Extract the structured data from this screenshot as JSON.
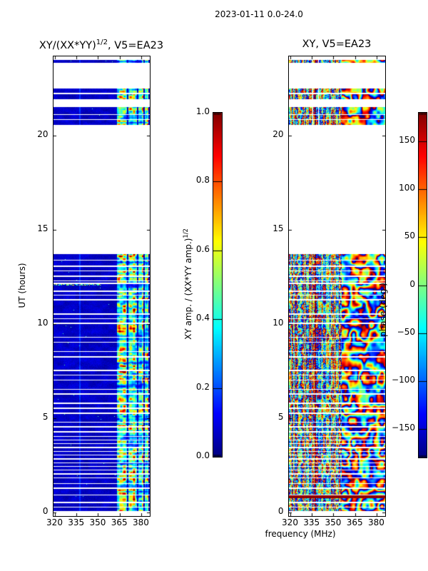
{
  "figure": {
    "title": "2023-01-11 0.0-24.0",
    "background": "#ffffff"
  },
  "chart_data": {
    "type": "heatmap",
    "colormap": "jet",
    "x_axis": {
      "label": "frequency (MHz)",
      "lim": [
        319.0,
        386.0
      ],
      "tick_values": [
        320,
        335,
        350,
        365,
        380
      ],
      "tick_labels": [
        "320",
        "335",
        "350",
        "365",
        "380"
      ]
    },
    "y_axis": {
      "label": "UT (hours)",
      "lim": [
        -0.2,
        24.2
      ],
      "tick_values": [
        0,
        5,
        10,
        15,
        20
      ],
      "tick_labels": [
        "0",
        "5",
        "10",
        "15",
        "20"
      ]
    },
    "time_bands": [
      [
        23.85,
        24.0
      ],
      [
        22.28,
        22.48
      ],
      [
        21.93,
        22.2
      ],
      [
        21.15,
        21.52
      ],
      [
        20.88,
        21.1
      ],
      [
        20.55,
        20.84
      ],
      [
        13.42,
        13.7
      ],
      [
        13.08,
        13.36
      ],
      [
        12.84,
        13.02
      ],
      [
        12.55,
        12.78
      ],
      [
        12.3,
        12.49
      ],
      [
        12.18,
        12.26
      ],
      [
        11.76,
        12.12
      ],
      [
        11.55,
        11.7
      ],
      [
        11.3,
        11.49
      ],
      [
        10.56,
        11.24
      ],
      [
        10.3,
        10.5
      ],
      [
        10.05,
        10.24
      ],
      [
        9.32,
        9.99
      ],
      [
        9.06,
        9.26
      ],
      [
        8.56,
        8.99
      ],
      [
        8.3,
        8.5
      ],
      [
        7.56,
        8.23
      ],
      [
        7.3,
        7.5
      ],
      [
        7.05,
        7.25
      ],
      [
        6.56,
        6.99
      ],
      [
        6.3,
        6.5
      ],
      [
        5.81,
        6.23
      ],
      [
        5.56,
        5.75
      ],
      [
        5.3,
        5.5
      ],
      [
        4.81,
        5.23
      ],
      [
        4.56,
        4.75
      ],
      [
        4.3,
        4.5
      ],
      [
        4.06,
        4.25
      ],
      [
        3.86,
        4.01
      ],
      [
        3.66,
        3.81
      ],
      [
        3.46,
        3.61
      ],
      [
        3.26,
        3.41
      ],
      [
        3.06,
        3.21
      ],
      [
        2.86,
        3.01
      ],
      [
        2.66,
        2.81
      ],
      [
        2.46,
        2.61
      ],
      [
        2.26,
        2.41
      ],
      [
        2.06,
        2.21
      ],
      [
        1.86,
        2.01
      ],
      [
        1.56,
        1.79
      ],
      [
        1.3,
        1.5
      ],
      [
        0.92,
        1.24
      ],
      [
        0.56,
        0.88
      ],
      [
        0.3,
        0.5
      ],
      [
        0.05,
        0.26
      ]
    ],
    "panels": [
      {
        "id": "amplitude_ratio",
        "title": {
          "pre": "XY/(XX*YY)",
          "sup": "1/2",
          "post": ", V5=EA23"
        },
        "colorbar": {
          "vmin": 0.0,
          "vmax": 1.0,
          "tick_values": [
            0.0,
            0.2,
            0.4,
            0.6,
            0.8,
            1.0
          ],
          "tick_labels": [
            "0.0",
            "0.2",
            "0.4",
            "0.6",
            "0.8",
            "1.0"
          ],
          "label": {
            "pre": "XY amp. / (XX*YY amp.)",
            "sup": "1/2"
          }
        },
        "background_value_range": [
          0.02,
          0.12
        ],
        "bright_freq_bands_mhz": [
          [
            363,
            370
          ],
          [
            371,
            377
          ],
          [
            378,
            381.5
          ],
          [
            382.5,
            384.8
          ]
        ],
        "bright_value_range": [
          0.15,
          0.68
        ],
        "enhanced_channel_mhz": 337.5,
        "streak": {
          "hours": [
            12.02,
            12.12
          ],
          "below_mhz": 352.5,
          "value_range": [
            0.25,
            0.7
          ]
        }
      },
      {
        "id": "phase",
        "title": {
          "pre": "XY, V5=EA23"
        },
        "colorbar": {
          "vmin": -180,
          "vmax": 180,
          "tick_values": [
            150,
            100,
            50,
            0,
            -50,
            -100,
            -150
          ],
          "tick_labels": [
            "150",
            "100",
            "50",
            "0",
            "−50",
            "−100",
            "−150"
          ],
          "label": "phase (deg.)"
        },
        "smooth_above_mhz": 355.5,
        "red_channel_mhz": 337.3,
        "flagged_white_channels_mhz": [
          335.7,
          339.8
        ],
        "red_row_hours": [
          0.76,
          0.88
        ]
      }
    ]
  }
}
